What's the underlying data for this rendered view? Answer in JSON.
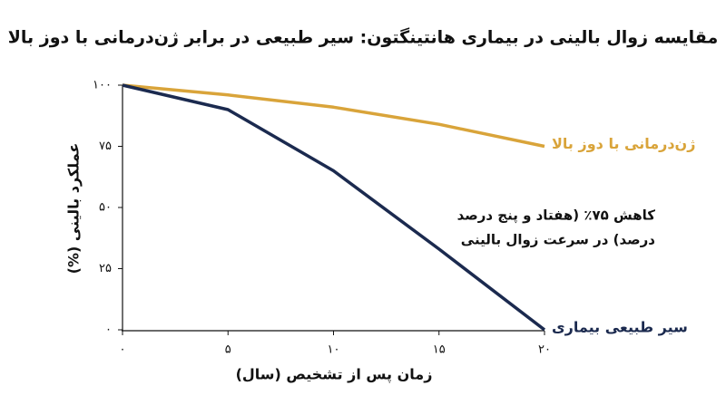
{
  "chart_data": {
    "type": "line",
    "title": "مقایسه زوال بالینی در بیماری هانتینگتون: سیر طبیعی در برابر ژن‌درمانی با دوز بالا",
    "x_label": "زمان پس از تشخیص (سال)",
    "y_label": "عملکرد بالینی (%)",
    "x": [
      0,
      5,
      10,
      15,
      20
    ],
    "xlim": [
      0,
      20
    ],
    "xticks": [
      {
        "value": 0,
        "label": "۰"
      },
      {
        "value": 5,
        "label": "۵"
      },
      {
        "value": 10,
        "label": "۱۰"
      },
      {
        "value": 15,
        "label": "۱۵"
      },
      {
        "value": 20,
        "label": "۲۰"
      }
    ],
    "ylim": [
      0,
      100
    ],
    "yticks": [
      {
        "value": 0,
        "label": "۰"
      },
      {
        "value": 25,
        "label": "۲۵"
      },
      {
        "value": 50,
        "label": "۵۰"
      },
      {
        "value": 75,
        "label": "۷۵"
      },
      {
        "value": 100,
        "label": "۱۰۰"
      }
    ],
    "grid": false,
    "series": [
      {
        "name": "ژن‌درمانی با دوز بالا",
        "color": "#d9a43a",
        "values": [
          100,
          96,
          91,
          84,
          75
        ]
      },
      {
        "name": "سیر طبیعی بیماری",
        "color": "#1b2a4f",
        "values": [
          100,
          90,
          65,
          33,
          0
        ]
      }
    ],
    "annotation": [
      "کاهش ۷۵٪ (هفتاد و پنج درصد",
      "درصد) در سرعت زوال بالینی"
    ]
  }
}
